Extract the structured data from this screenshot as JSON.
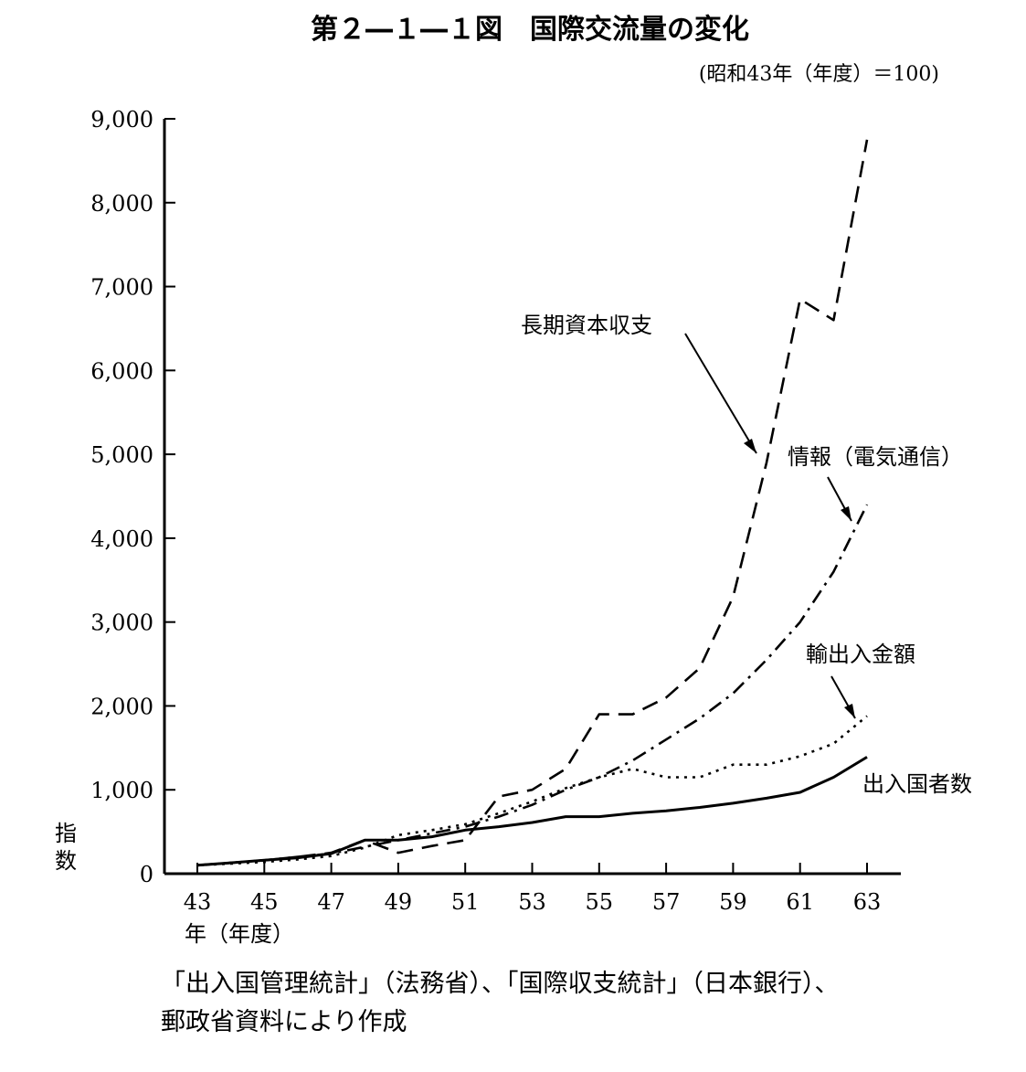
{
  "chart_data": {
    "type": "line",
    "title": "第２―１―１図　国際交流量の変化",
    "subtitle": "(昭和43年（年度）＝100)",
    "ylabel": "指数",
    "xlabel_unit": "年（年度）",
    "x": [
      43,
      44,
      45,
      46,
      47,
      48,
      49,
      50,
      51,
      52,
      53,
      54,
      55,
      56,
      57,
      58,
      59,
      60,
      61,
      62,
      63
    ],
    "xticks": [
      {
        "value": 43,
        "label": "43"
      },
      {
        "value": 45,
        "label": "45"
      },
      {
        "value": 47,
        "label": "47"
      },
      {
        "value": 49,
        "label": "49"
      },
      {
        "value": 51,
        "label": "51"
      },
      {
        "value": 53,
        "label": "53"
      },
      {
        "value": 55,
        "label": "55"
      },
      {
        "value": 57,
        "label": "57"
      },
      {
        "value": 59,
        "label": "59"
      },
      {
        "value": 61,
        "label": "61"
      },
      {
        "value": 63,
        "label": "63"
      }
    ],
    "yticks": [
      {
        "value": 0,
        "label": "0"
      },
      {
        "value": 1000,
        "label": "1,000"
      },
      {
        "value": 2000,
        "label": "2,000"
      },
      {
        "value": 3000,
        "label": "3,000"
      },
      {
        "value": 4000,
        "label": "4,000"
      },
      {
        "value": 5000,
        "label": "5,000"
      },
      {
        "value": 6000,
        "label": "6,000"
      },
      {
        "value": 7000,
        "label": "7,000"
      },
      {
        "value": 8000,
        "label": "8,000"
      },
      {
        "value": 9000,
        "label": "9,000"
      }
    ],
    "xlim": [
      43,
      63
    ],
    "ylim": [
      0,
      9000
    ],
    "grid": false,
    "series": [
      {
        "name": "長期資本収支",
        "style": "dashed",
        "values": [
          100,
          130,
          160,
          200,
          250,
          400,
          250,
          330,
          400,
          920,
          1000,
          1250,
          1900,
          1900,
          2100,
          2450,
          3300,
          4900,
          6850,
          6600,
          8750
        ]
      },
      {
        "name": "情報（電気通信）",
        "style": "dashdot",
        "values": [
          100,
          130,
          160,
          200,
          240,
          320,
          400,
          480,
          560,
          680,
          820,
          1000,
          1150,
          1350,
          1600,
          1850,
          2150,
          2550,
          3000,
          3600,
          4400
        ]
      },
      {
        "name": "輸出入金額",
        "style": "dotted",
        "values": [
          100,
          120,
          140,
          170,
          210,
          310,
          460,
          520,
          590,
          720,
          860,
          1020,
          1150,
          1250,
          1150,
          1150,
          1300,
          1300,
          1400,
          1550,
          1880
        ]
      },
      {
        "name": "出入国者数",
        "style": "solid",
        "values": [
          100,
          130,
          160,
          190,
          240,
          400,
          400,
          440,
          520,
          560,
          610,
          680,
          680,
          720,
          750,
          790,
          840,
          900,
          970,
          1150,
          1390
        ]
      }
    ],
    "source": [
      "「出入国管理統計」（法務省）、「国際収支統計」（日本銀行）、",
      "郵政省資料により作成"
    ]
  }
}
